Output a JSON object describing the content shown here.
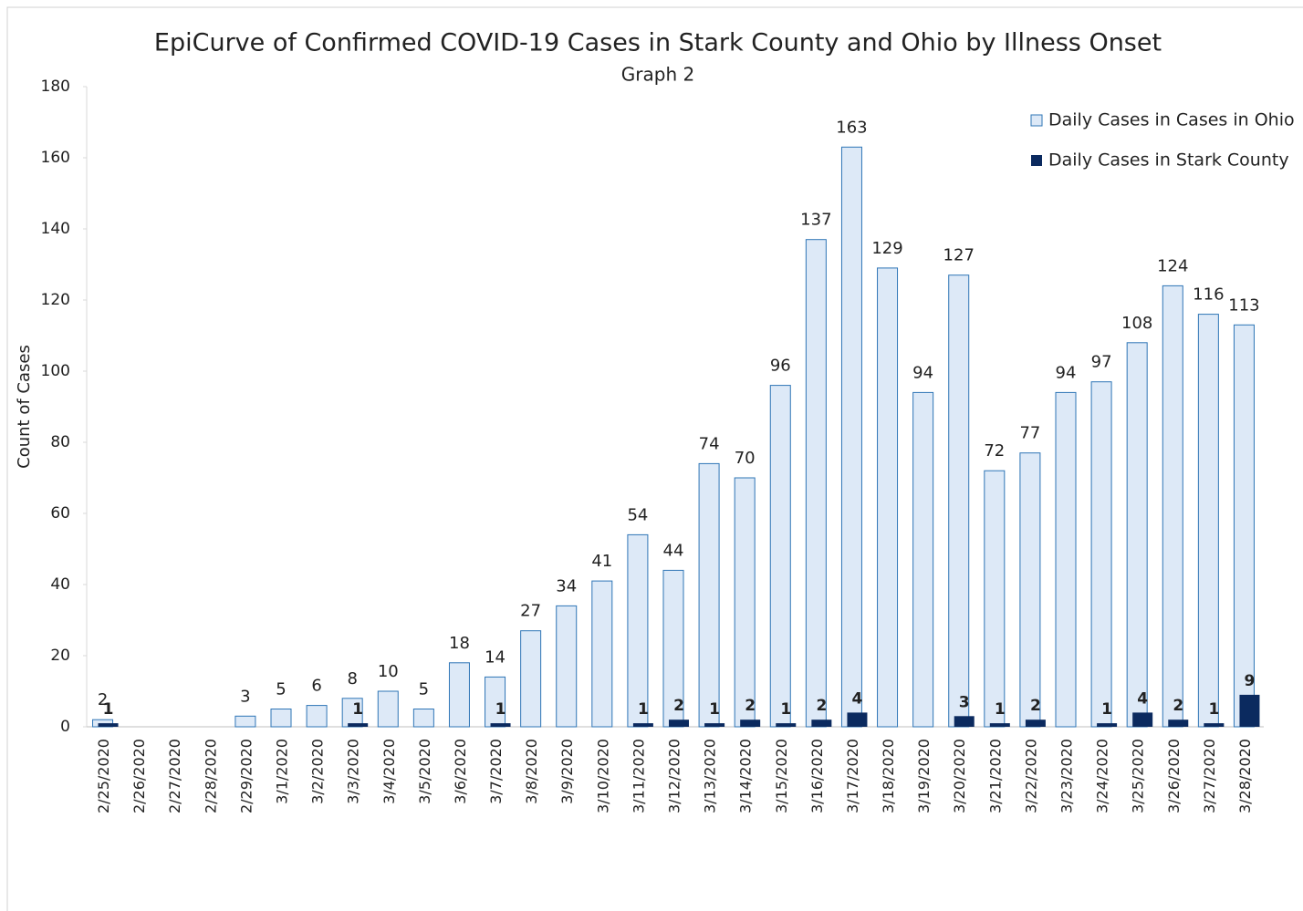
{
  "chart_data": {
    "type": "bar",
    "title": "EpiCurve of Confirmed COVID-19 Cases in Stark County and Ohio by Illness Onset",
    "subtitle": "Graph 2",
    "y_label": "Count of Cases",
    "categories": [
      "2/25/2020",
      "2/26/2020",
      "2/27/2020",
      "2/28/2020",
      "2/29/2020",
      "3/1/2020",
      "3/2/2020",
      "3/3/2020",
      "3/4/2020",
      "3/5/2020",
      "3/6/2020",
      "3/7/2020",
      "3/8/2020",
      "3/9/2020",
      "3/10/2020",
      "3/11/2020",
      "3/12/2020",
      "3/13/2020",
      "3/14/2020",
      "3/15/2020",
      "3/16/2020",
      "3/17/2020",
      "3/18/2020",
      "3/19/2020",
      "3/20/2020",
      "3/21/2020",
      "3/22/2020",
      "3/23/2020",
      "3/24/2020",
      "3/25/2020",
      "3/26/2020",
      "3/27/2020",
      "3/28/2020"
    ],
    "series": [
      {
        "name": "Daily Cases in Cases in Ohio",
        "color": "#dde9f7",
        "stroke": "#2e75b6",
        "values": [
          2,
          null,
          null,
          null,
          3,
          5,
          6,
          8,
          10,
          5,
          18,
          14,
          27,
          34,
          41,
          54,
          44,
          74,
          70,
          96,
          137,
          163,
          129,
          94,
          127,
          72,
          77,
          94,
          97,
          108,
          124,
          116,
          113
        ]
      },
      {
        "name": "Daily Cases in Stark County",
        "color": "#0b2a5f",
        "values": [
          1,
          null,
          null,
          null,
          null,
          null,
          null,
          1,
          null,
          null,
          null,
          1,
          null,
          null,
          null,
          1,
          2,
          1,
          2,
          1,
          2,
          4,
          null,
          null,
          3,
          1,
          2,
          null,
          1,
          4,
          2,
          1,
          9
        ]
      }
    ],
    "ylim": [
      0,
      180
    ],
    "yticks": [
      0,
      20,
      40,
      60,
      80,
      100,
      120,
      140,
      160,
      180
    ],
    "legend": "top-right"
  }
}
